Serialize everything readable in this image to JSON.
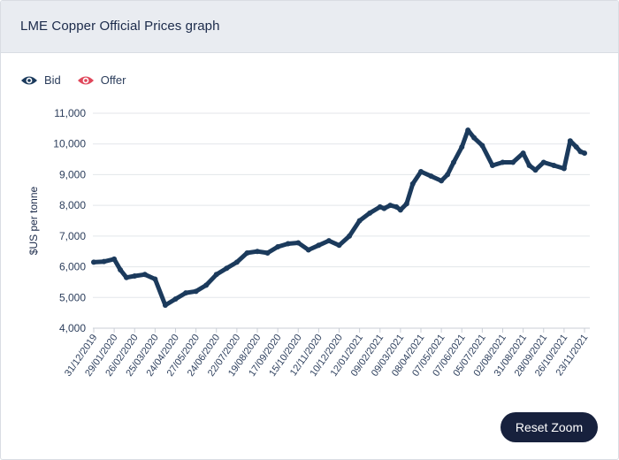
{
  "panel": {
    "title": "LME Copper Official Prices graph"
  },
  "legend": [
    {
      "label": "Bid",
      "color": "#1b3a5c"
    },
    {
      "label": "Offer",
      "color": "#e0475b"
    }
  ],
  "reset_zoom_label": "Reset Zoom",
  "chart_data": {
    "type": "line",
    "title": "LME Copper Official Prices graph",
    "ylabel": "$US per tonne",
    "xlabel": "",
    "ylim": [
      4000,
      11000
    ],
    "yticks": [
      4000,
      5000,
      6000,
      7000,
      8000,
      9000,
      10000,
      11000
    ],
    "ytick_labels": [
      "4,000",
      "5,000",
      "6,000",
      "7,000",
      "8,000",
      "9,000",
      "10,000",
      "11,000"
    ],
    "xticks": [
      "31/12/2019",
      "29/01/2020",
      "26/02/2020",
      "25/03/2020",
      "24/04/2020",
      "27/05/2020",
      "24/06/2020",
      "22/07/2020",
      "19/08/2020",
      "17/09/2020",
      "15/10/2020",
      "12/11/2020",
      "10/12/2020",
      "12/01/2021",
      "09/02/2021",
      "09/03/2021",
      "08/04/2021",
      "07/05/2021",
      "07/06/2021",
      "05/07/2021",
      "02/08/2021",
      "31/08/2021",
      "28/09/2021",
      "26/10/2021",
      "23/11/2021"
    ],
    "grid": true,
    "legend_position": "top-left",
    "series": [
      {
        "name": "Bid",
        "color": "#1b3a5c",
        "x": [
          0,
          0.5,
          1,
          1.3,
          1.6,
          2,
          2.5,
          3,
          3.5,
          4,
          4.5,
          5,
          5.5,
          6,
          6.5,
          7,
          7.5,
          8,
          8.5,
          9,
          9.5,
          10,
          10.5,
          11,
          11.5,
          12,
          12.5,
          13,
          13.5,
          14,
          14.2,
          14.5,
          14.8,
          15,
          15.3,
          15.6,
          16,
          16.5,
          17,
          17.3,
          17.6,
          18,
          18.3,
          18.6,
          19,
          19.5,
          20,
          20.5,
          21,
          21.3,
          21.6,
          22,
          22.5,
          23,
          23.3,
          23.6,
          23.8,
          24
        ],
        "values": [
          6150,
          6170,
          6250,
          5900,
          5650,
          5700,
          5750,
          5600,
          4750,
          4950,
          5150,
          5200,
          5400,
          5750,
          5950,
          6150,
          6450,
          6500,
          6450,
          6650,
          6750,
          6780,
          6550,
          6700,
          6850,
          6700,
          7000,
          7500,
          7750,
          7950,
          7900,
          8000,
          7950,
          7850,
          8050,
          8700,
          9100,
          8950,
          8800,
          9000,
          9400,
          9900,
          10450,
          10200,
          9950,
          9300,
          9400,
          9400,
          9700,
          9300,
          9150,
          9400,
          9300,
          9200,
          10100,
          9900,
          9750,
          9700
        ]
      }
    ]
  }
}
